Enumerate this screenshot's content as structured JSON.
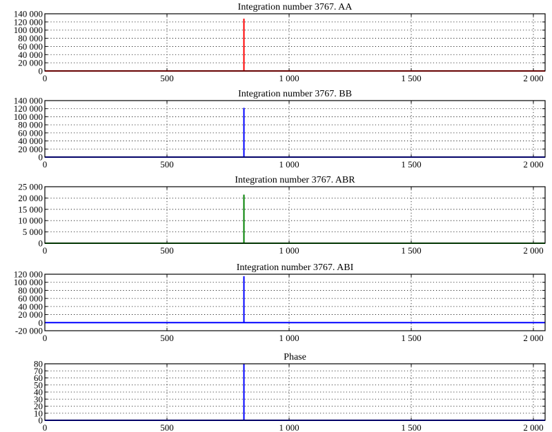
{
  "chart_data": [
    {
      "type": "line",
      "title": "Integration number 3767. AA",
      "color": "#ff0000",
      "grid": true,
      "xlim": [
        0,
        2048
      ],
      "ylim": [
        0,
        140000
      ],
      "xticks": [
        0,
        500,
        1000,
        1500,
        2000
      ],
      "xtick_labels": [
        "0",
        "500",
        "1 000",
        "1 500",
        "2 000"
      ],
      "yticks": [
        0,
        20000,
        40000,
        60000,
        80000,
        100000,
        120000,
        140000
      ],
      "ytick_labels": [
        "0",
        "20 000",
        "40 000",
        "60 000",
        "80 000",
        "100 000",
        "120 000",
        "140 000"
      ],
      "series": [
        {
          "baseline": 0,
          "spike": {
            "x": 815,
            "y": 128000
          }
        }
      ]
    },
    {
      "type": "line",
      "title": "Integration number 3767. BB",
      "color": "#0000ff",
      "grid": true,
      "xlim": [
        0,
        2048
      ],
      "ylim": [
        0,
        140000
      ],
      "xticks": [
        0,
        500,
        1000,
        1500,
        2000
      ],
      "xtick_labels": [
        "0",
        "500",
        "1 000",
        "1 500",
        "2 000"
      ],
      "yticks": [
        0,
        20000,
        40000,
        60000,
        80000,
        100000,
        120000,
        140000
      ],
      "ytick_labels": [
        "0",
        "20 000",
        "40 000",
        "60 000",
        "80 000",
        "100 000",
        "120 000",
        "140 000"
      ],
      "series": [
        {
          "baseline": 0,
          "spike": {
            "x": 815,
            "y": 122000
          }
        }
      ]
    },
    {
      "type": "line",
      "title": "Integration number 3767. ABR",
      "color": "#008000",
      "grid": true,
      "xlim": [
        0,
        2048
      ],
      "ylim": [
        0,
        25000
      ],
      "xticks": [
        0,
        500,
        1000,
        1500,
        2000
      ],
      "xtick_labels": [
        "0",
        "500",
        "1 000",
        "1 500",
        "2 000"
      ],
      "yticks": [
        0,
        5000,
        10000,
        15000,
        20000,
        25000
      ],
      "ytick_labels": [
        "0",
        "5 000",
        "10 000",
        "15 000",
        "20 000",
        "25 000"
      ],
      "series": [
        {
          "baseline": 0,
          "spike": {
            "x": 815,
            "y": 21500
          }
        }
      ]
    },
    {
      "type": "line",
      "title": "Integration number 3767. ABI",
      "color": "#0000ff",
      "grid": true,
      "xlim": [
        0,
        2048
      ],
      "ylim": [
        -20000,
        120000
      ],
      "xticks": [
        0,
        500,
        1000,
        1500,
        2000
      ],
      "xtick_labels": [
        "0",
        "500",
        "1 000",
        "1 500",
        "2 000"
      ],
      "yticks": [
        -20000,
        0,
        20000,
        40000,
        60000,
        80000,
        100000,
        120000
      ],
      "ytick_labels": [
        "-20 000",
        "0",
        "20 000",
        "40 000",
        "60 000",
        "80 000",
        "100 000",
        "120 000"
      ],
      "series": [
        {
          "baseline": 0,
          "spike": {
            "x": 815,
            "y": 115000
          }
        }
      ]
    },
    {
      "type": "line",
      "title": "Phase",
      "color": "#0000ff",
      "grid": true,
      "xlim": [
        0,
        2048
      ],
      "ylim": [
        0,
        80
      ],
      "xticks": [
        0,
        500,
        1000,
        1500,
        2000
      ],
      "xtick_labels": [
        "0",
        "500",
        "1 000",
        "1 500",
        "2 000"
      ],
      "yticks": [
        0,
        10,
        20,
        30,
        40,
        50,
        60,
        70,
        80
      ],
      "ytick_labels": [
        "0",
        "10",
        "20",
        "30",
        "40",
        "50",
        "60",
        "70",
        "80"
      ],
      "series": [
        {
          "baseline": 0,
          "spike": {
            "x": 815,
            "y": 80
          }
        }
      ]
    }
  ]
}
